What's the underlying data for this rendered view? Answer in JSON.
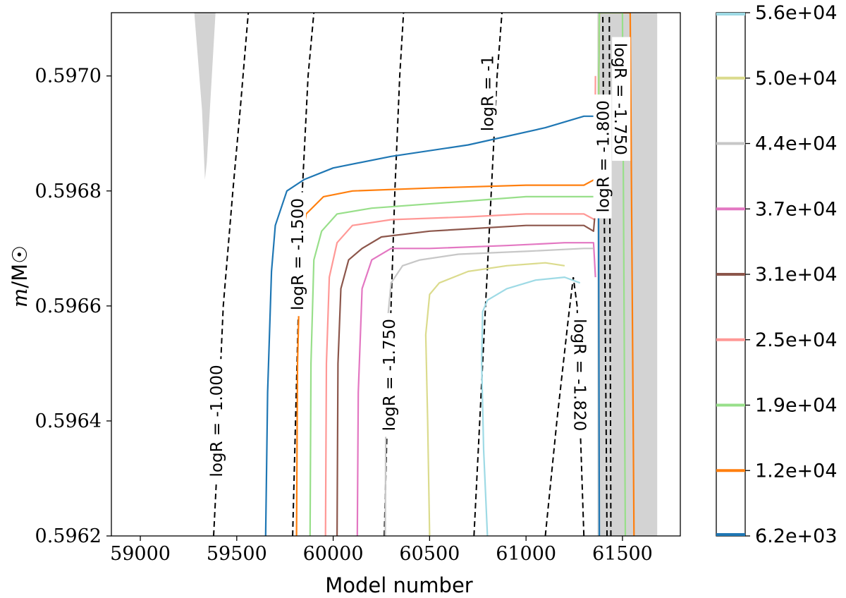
{
  "chart_data": {
    "type": "line",
    "xlabel": "Model number",
    "ylabel": "m/M☉",
    "ylabel_italic_part": "m",
    "ylabel_rest": "/M☉",
    "xlim": [
      58850,
      61800
    ],
    "ylim": [
      0.5962,
      0.59711
    ],
    "x_ticks": [
      59000,
      59500,
      60000,
      60500,
      61000,
      61500
    ],
    "x_tick_labels": [
      "59000",
      "59500",
      "60000",
      "60500",
      "61000",
      "61500"
    ],
    "y_ticks": [
      0.5962,
      0.5964,
      0.5966,
      0.5968,
      0.597
    ],
    "y_tick_labels": [
      "0.5962",
      "0.5964",
      "0.5966",
      "0.5968",
      "0.5970"
    ],
    "grid": false,
    "shaded_regions": [
      {
        "name": "convective-wedge",
        "color": "#d3d3d3",
        "points": [
          [
            59280,
            0.59711
          ],
          [
            59390,
            0.59711
          ],
          [
            59362,
            0.59695
          ],
          [
            59345,
            0.59685
          ],
          [
            59335,
            0.59682
          ],
          [
            59320,
            0.59694
          ]
        ]
      },
      {
        "name": "convective-band",
        "color": "#d3d3d3",
        "points": [
          [
            61370,
            0.59711
          ],
          [
            61680,
            0.59711
          ],
          [
            61680,
            0.5962
          ],
          [
            61370,
            0.5962
          ]
        ]
      }
    ],
    "series": [
      {
        "name": "6.2e+03",
        "color": "#1f77b4",
        "x": [
          59650,
          59660,
          59680,
          59700,
          59760,
          59850,
          60000,
          60300,
          60700,
          61100,
          61300,
          61360,
          61375,
          61380
        ],
        "y": [
          0.5962,
          0.59645,
          0.59666,
          0.59674,
          0.5968,
          0.59682,
          0.59684,
          0.59686,
          0.59688,
          0.59691,
          0.59693,
          0.59693,
          0.5969,
          0.5962
        ]
      },
      {
        "name": "1.2e+04",
        "color": "#ff7f0e",
        "x": [
          59810,
          59815,
          59830,
          59860,
          59950,
          60100,
          60500,
          61000,
          61300,
          61355,
          61375,
          61380,
          61540,
          61560
        ],
        "y": [
          0.5962,
          0.5965,
          0.5967,
          0.59676,
          0.59679,
          0.5968,
          0.596805,
          0.59681,
          0.59681,
          0.59682,
          0.5969,
          0.59711,
          0.59711,
          0.5962
        ]
      },
      {
        "name": "1.9e+04",
        "color": "#98df8a",
        "x": [
          59880,
          59885,
          59900,
          59940,
          60020,
          60200,
          60600,
          61000,
          61300,
          61355,
          61375,
          61380,
          61500,
          61515
        ],
        "y": [
          0.5962,
          0.5965,
          0.59668,
          0.59673,
          0.59676,
          0.59677,
          0.59678,
          0.59679,
          0.59679,
          0.59679,
          0.5969,
          0.59711,
          0.59711,
          0.5962
        ]
      },
      {
        "name": "2.5e+04",
        "color": "#ff9896",
        "x": [
          59960,
          59965,
          59980,
          60020,
          60100,
          60300,
          60700,
          61000,
          61300,
          61355,
          61360
        ],
        "y": [
          0.5962,
          0.5965,
          0.59665,
          0.59671,
          0.59674,
          0.59675,
          0.596755,
          0.59676,
          0.59676,
          0.59675,
          0.597
        ]
      },
      {
        "name": "3.1e+04",
        "color": "#8c564b",
        "x": [
          60020,
          60025,
          60040,
          60080,
          60150,
          60250,
          60500,
          61000,
          61300,
          61350,
          61360
        ],
        "y": [
          0.5962,
          0.5965,
          0.59663,
          0.59668,
          0.5967,
          0.59672,
          0.59673,
          0.59674,
          0.59674,
          0.59673,
          0.59677
        ]
      },
      {
        "name": "3.7e+04",
        "color": "#e377c2",
        "x": [
          60125,
          60130,
          60150,
          60200,
          60300,
          60500,
          60900,
          61200,
          61350,
          61360
        ],
        "y": [
          0.5962,
          0.59645,
          0.59663,
          0.59668,
          0.5967,
          0.5967,
          0.596705,
          0.59671,
          0.59671,
          0.59665
        ]
      },
      {
        "name": "4.4e+04",
        "color": "#c7c7c7",
        "x": [
          60270,
          60275,
          60300,
          60360,
          60450,
          60650,
          61000,
          61300,
          61350
        ],
        "y": [
          0.5962,
          0.59655,
          0.59664,
          0.59667,
          0.59668,
          0.59669,
          0.596695,
          0.5967,
          0.5967
        ]
      },
      {
        "name": "5.0e+04",
        "color": "#dbdb8d",
        "x": [
          60500,
          60490,
          60480,
          60500,
          60550,
          60700,
          60900,
          61100,
          61200
        ],
        "y": [
          0.5962,
          0.5964,
          0.59655,
          0.59662,
          0.59664,
          0.59666,
          0.59667,
          0.596675,
          0.59667
        ]
      },
      {
        "name": "5.6e+04",
        "color": "#9edae5",
        "x": [
          60800,
          60780,
          60770,
          60775,
          60800,
          60900,
          61050,
          61200,
          61280
        ],
        "y": [
          0.5962,
          0.59635,
          0.5965,
          0.59659,
          0.59661,
          0.59663,
          0.596645,
          0.59665,
          0.59664
        ]
      }
    ],
    "contours": [
      {
        "label": "logR = -1.000",
        "x": [
          59380,
          59395,
          59410,
          59430,
          59480,
          59520,
          59560
        ],
        "y": [
          0.5962,
          0.5963,
          0.59645,
          0.5966,
          0.5968,
          0.59695,
          0.59711
        ]
      },
      {
        "label": "logR = -1.500",
        "x": [
          59790,
          59805,
          59820,
          59840,
          59870,
          59900
        ],
        "y": [
          0.5962,
          0.5964,
          0.5966,
          0.5968,
          0.597,
          0.59711
        ]
      },
      {
        "label": "logR = -1.750",
        "x": [
          60265,
          60280,
          60300,
          60320,
          60345,
          60365
        ],
        "y": [
          0.5962,
          0.5964,
          0.5966,
          0.5968,
          0.597,
          0.59711
        ]
      },
      {
        "label": "logR = -1",
        "x": [
          60730,
          60760,
          60790,
          60820,
          60850,
          60875
        ],
        "y": [
          0.5962,
          0.5964,
          0.5966,
          0.5968,
          0.597,
          0.59711
        ]
      },
      {
        "label": "logR = -1.820",
        "x": [
          61100,
          61160,
          61220,
          61245,
          61265,
          61280,
          61300
        ],
        "y": [
          0.5962,
          0.5964,
          0.59658,
          0.59665,
          0.5966,
          0.5964,
          0.5962
        ]
      },
      {
        "label": "logR = -1.800",
        "x": [
          61420,
          61415,
          61410,
          61405,
          61400,
          61398
        ],
        "y": [
          0.5962,
          0.5964,
          0.5966,
          0.5968,
          0.597,
          0.59711
        ]
      },
      {
        "label": "logR = -1.750",
        "x": [
          61440,
          61438,
          61436,
          61434,
          61432
        ],
        "y": [
          0.5962,
          0.5964,
          0.5966,
          0.5968,
          0.59711
        ]
      }
    ],
    "contour_labels": [
      {
        "text": "logR = -1.000",
        "x": 59395,
        "y": 0.5964
      },
      {
        "text": "logR = -1.500",
        "x": 59815,
        "y": 0.59669
      },
      {
        "text": "logR = -1.750",
        "x": 60290,
        "y": 0.59648
      },
      {
        "text": "logR = -1",
        "x": 60800,
        "y": 0.59697
      },
      {
        "text": "logR = -1.820",
        "x": 61280,
        "y": 0.59648
      },
      {
        "text": "logR = -1.800",
        "x": 61400,
        "y": 0.59686
      },
      {
        "text": "logR = -1.750",
        "x": 61490,
        "y": 0.59696
      }
    ],
    "colorbar": {
      "ticks": [
        6200,
        12000,
        19000,
        25000,
        31000,
        37000,
        44000,
        50000,
        56000
      ],
      "tick_labels": [
        "6.2e+03",
        "1.2e+04",
        "1.9e+04",
        "2.5e+04",
        "3.1e+04",
        "3.7e+04",
        "4.4e+04",
        "5.0e+04",
        "5.6e+04"
      ],
      "colors": [
        "#1f77b4",
        "#ff7f0e",
        "#98df8a",
        "#ff9896",
        "#8c564b",
        "#e377c2",
        "#c7c7c7",
        "#dbdb8d",
        "#9edae5"
      ]
    }
  }
}
